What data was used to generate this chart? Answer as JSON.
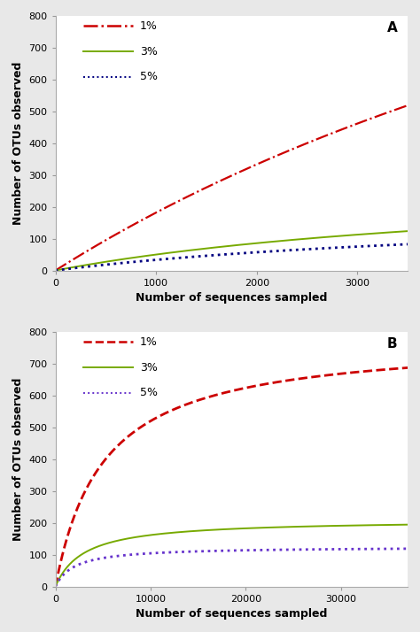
{
  "panel_A": {
    "label": "A",
    "xlim": [
      0,
      3500
    ],
    "ylim": [
      0,
      800
    ],
    "xticks": [
      0,
      1000,
      2000,
      3000
    ],
    "yticks": [
      0,
      100,
      200,
      300,
      400,
      500,
      600,
      700,
      800
    ],
    "xlabel": "Number of sequences sampled",
    "ylabel": "Number of OTUs observed",
    "curves": [
      {
        "label": "1%",
        "color": "#cc0000",
        "linestyle": "-.",
        "linewidth": 1.6,
        "asymptote": 2000,
        "half_sat": 10000
      },
      {
        "label": "3%",
        "color": "#77aa00",
        "linestyle": "-",
        "linewidth": 1.4,
        "asymptote": 300,
        "half_sat": 5000
      },
      {
        "label": "5%",
        "color": "#000080",
        "linestyle": ":",
        "linewidth": 2.0,
        "asymptote": 200,
        "half_sat": 5000
      }
    ],
    "legend_items": [
      {
        "label": "1%",
        "color": "#cc0000",
        "linestyle": "-."
      },
      {
        "label": "3%",
        "color": "#77aa00",
        "linestyle": "-"
      },
      {
        "label": "5%",
        "color": "#000080",
        "linestyle": ":"
      }
    ]
  },
  "panel_B": {
    "label": "B",
    "xlim": [
      0,
      37000
    ],
    "ylim": [
      0,
      800
    ],
    "xticks": [
      0,
      10000,
      20000,
      30000
    ],
    "yticks": [
      0,
      100,
      200,
      300,
      400,
      500,
      600,
      700,
      800
    ],
    "xlabel": "Number of sequences sampled",
    "ylabel": "Number of OTUs observed",
    "curves": [
      {
        "label": "1%",
        "color": "#cc0000",
        "linestyle": "--",
        "linewidth": 2.0,
        "asymptote": 780,
        "half_sat": 5000
      },
      {
        "label": "3%",
        "color": "#77aa00",
        "linestyle": "-",
        "linewidth": 1.4,
        "asymptote": 210,
        "half_sat": 3000
      },
      {
        "label": "5%",
        "color": "#6633cc",
        "linestyle": ":",
        "linewidth": 2.0,
        "asymptote": 125,
        "half_sat": 2000
      }
    ],
    "legend_items": [
      {
        "label": "1%",
        "color": "#cc0000",
        "linestyle": "--"
      },
      {
        "label": "3%",
        "color": "#77aa00",
        "linestyle": "-"
      },
      {
        "label": "5%",
        "color": "#6633cc",
        "linestyle": ":"
      }
    ]
  },
  "bg_color": "#e8e8e8",
  "font_size_label": 9,
  "font_size_tick": 8,
  "font_size_legend": 9,
  "font_size_panel_label": 11
}
